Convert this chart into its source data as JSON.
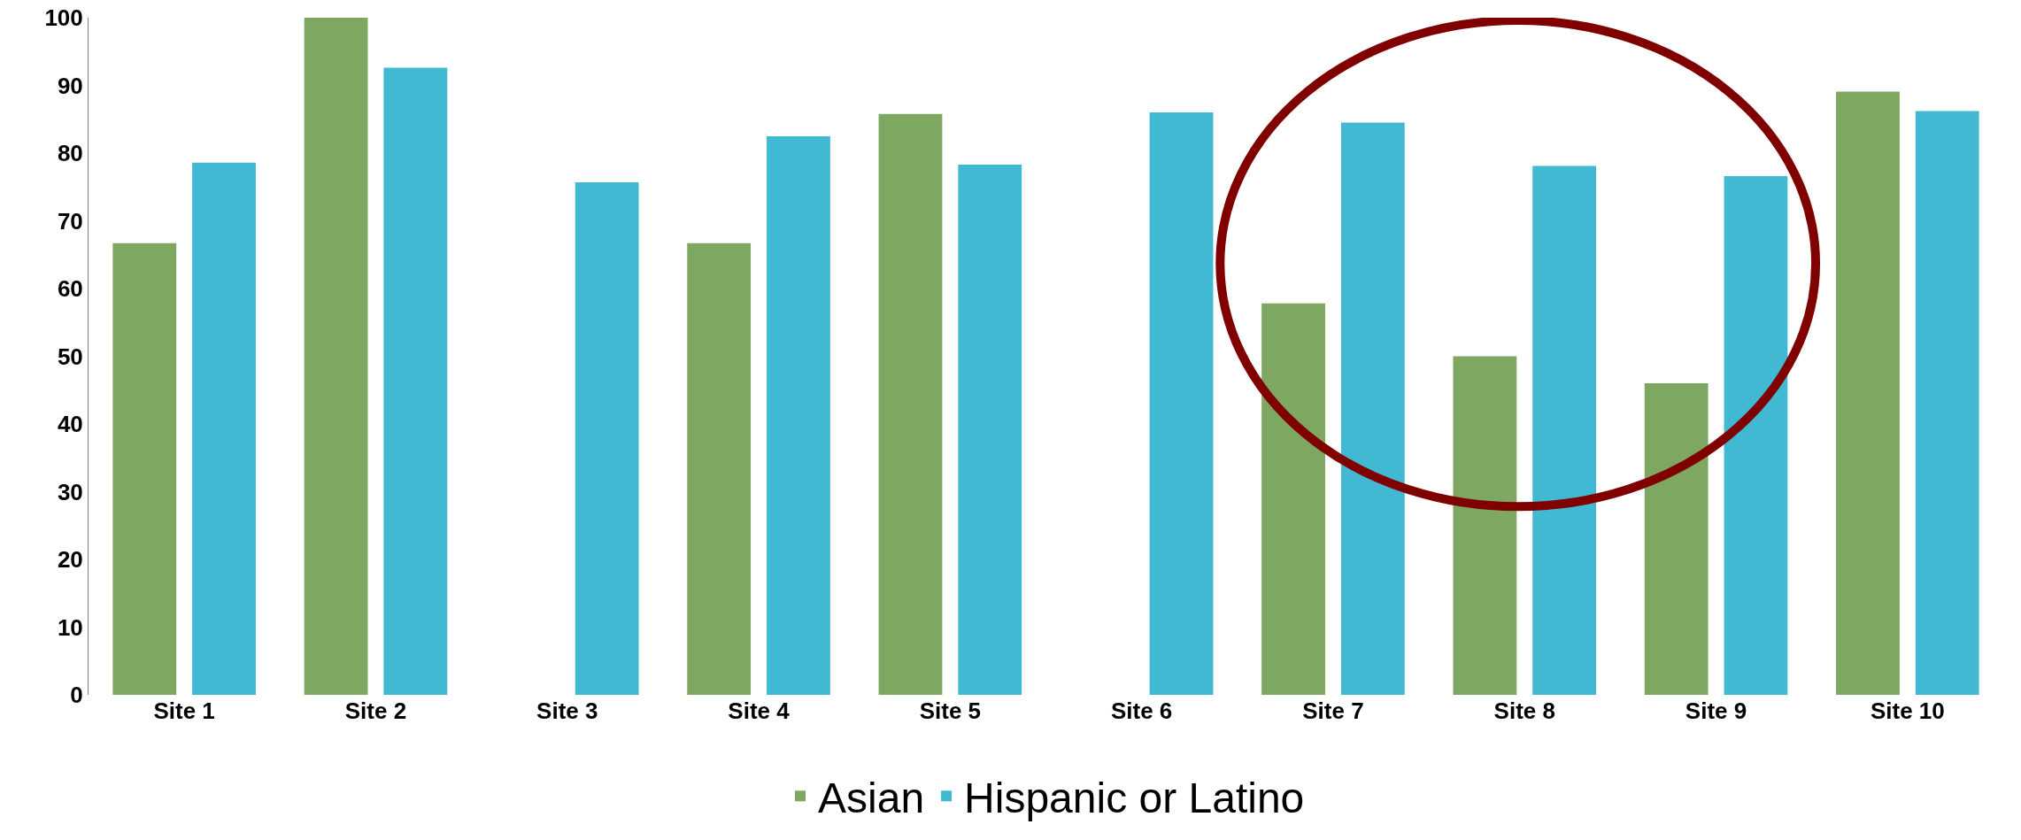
{
  "chart_data": {
    "type": "bar",
    "categories": [
      "Site 1",
      "Site 2",
      "Site 3",
      "Site 4",
      "Site 5",
      "Site 6",
      "Site 7",
      "Site 8",
      "Site 9",
      "Site 10"
    ],
    "series": [
      {
        "name": "Asian",
        "color": "#7ea862",
        "values": [
          66.7,
          100,
          null,
          66.7,
          85.8,
          null,
          57.8,
          50,
          46,
          89.1
        ]
      },
      {
        "name": "Hispanic or Latino",
        "color": "#42b9d2",
        "values": [
          78.6,
          92.6,
          75.7,
          82.5,
          78.3,
          86,
          84.5,
          78.1,
          76.6,
          86.2
        ]
      }
    ],
    "ylim": [
      0,
      100
    ],
    "yticks": [
      0,
      10,
      20,
      30,
      40,
      50,
      60,
      70,
      80,
      90,
      100
    ],
    "grid": false,
    "legend": "bottom"
  }
}
